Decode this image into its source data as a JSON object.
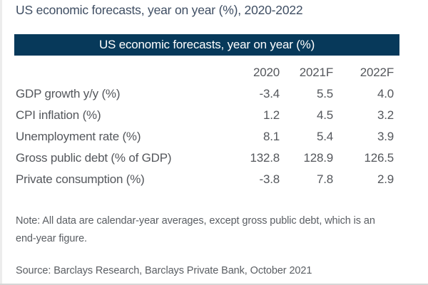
{
  "page": {
    "title": "US economic forecasts, year on year (%), 2020-2022"
  },
  "table": {
    "header": "US economic forecasts, year on year (%)",
    "columns": [
      "2020",
      "2021F",
      "2022F"
    ],
    "rows": [
      {
        "label": "GDP growth y/y (%)",
        "values": [
          "-3.4",
          "5.5",
          "4.0"
        ]
      },
      {
        "label": "CPI inflation (%)",
        "values": [
          "1.2",
          "4.5",
          "3.2"
        ]
      },
      {
        "label": "Unemployment rate (%)",
        "values": [
          "8.1",
          "5.4",
          "3.9"
        ]
      },
      {
        "label": "Gross public debt (% of GDP)",
        "values": [
          "132.8",
          "128.9",
          "126.5"
        ]
      },
      {
        "label": "Private consumption (%)",
        "values": [
          "-3.8",
          "7.8",
          "2.9"
        ]
      }
    ]
  },
  "note": "Note: All data are calendar-year averages, except gross public debt, which is an end-year figure.",
  "source": "Source: Barclays Research, Barclays Private Bank, October 2021",
  "colors": {
    "header_bar": "#07395a",
    "title_text": "#3f4e63",
    "body_text": "#54575c"
  }
}
